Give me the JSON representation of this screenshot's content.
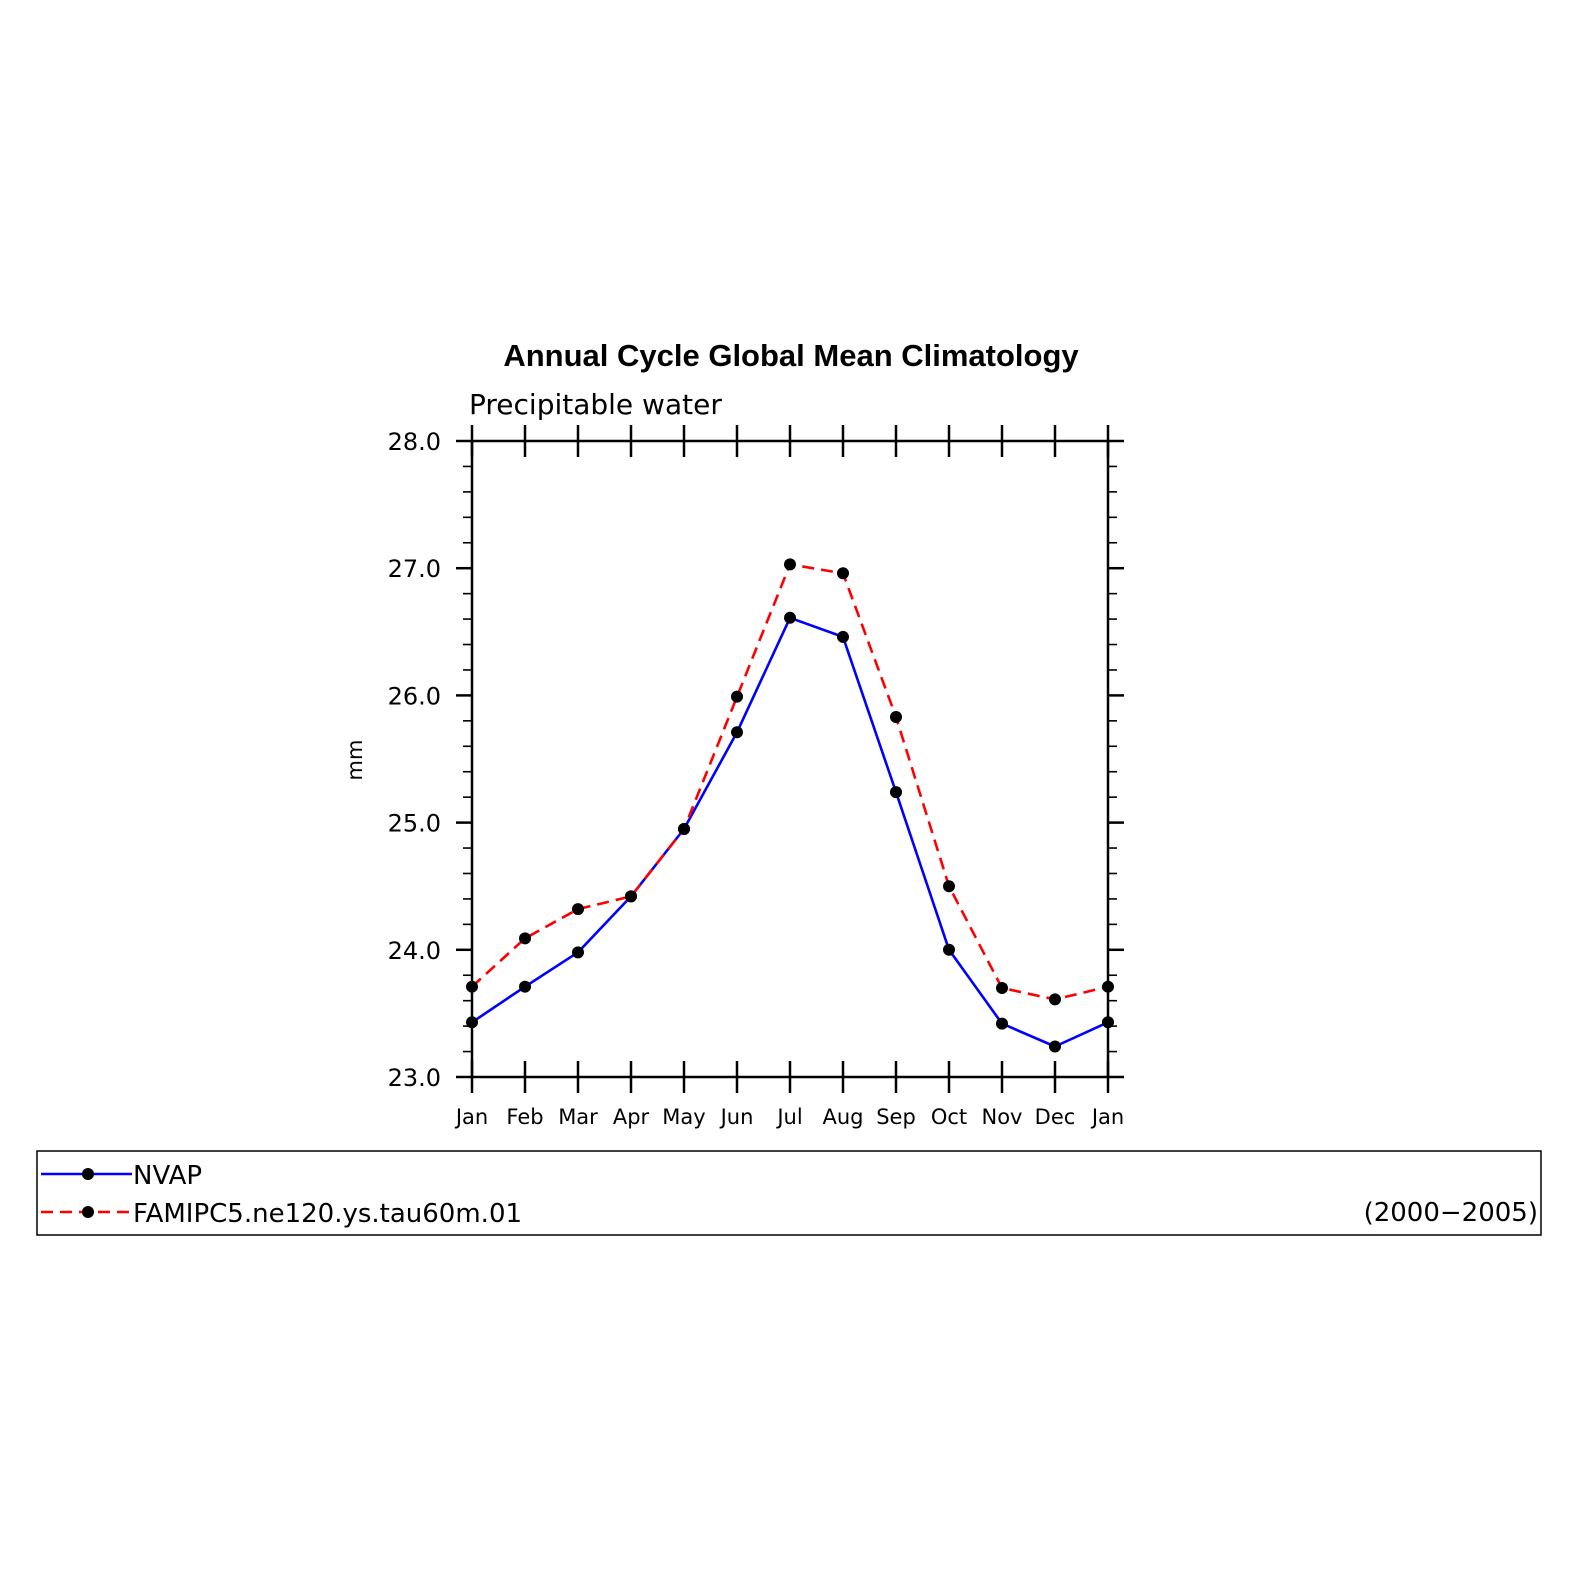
{
  "chart_data": {
    "type": "line",
    "title": "Annual Cycle Global Mean Climatology",
    "subtitle": "Precipitable water",
    "ylabel": "mm",
    "xlabel": "",
    "ylim": [
      23.0,
      28.0
    ],
    "yticks": [
      "23.0",
      "24.0",
      "25.0",
      "26.0",
      "27.0",
      "28.0"
    ],
    "categories": [
      "Jan",
      "Feb",
      "Mar",
      "Apr",
      "May",
      "Jun",
      "Jul",
      "Aug",
      "Sep",
      "Oct",
      "Nov",
      "Dec",
      "Jan"
    ],
    "grid": false,
    "series": [
      {
        "name": "NVAP",
        "color": "#0000ff",
        "dash": "solid",
        "values": [
          23.43,
          23.71,
          23.98,
          24.42,
          24.95,
          25.71,
          26.61,
          26.46,
          25.24,
          24.0,
          23.42,
          23.24,
          23.43
        ]
      },
      {
        "name": "FAMIPC5.ne120.ys.tau60m.01",
        "color": "#ff0000",
        "dash": "dashed",
        "values": [
          23.71,
          24.09,
          24.32,
          24.42,
          24.95,
          25.99,
          27.03,
          26.96,
          25.83,
          24.5,
          23.7,
          23.61,
          23.71
        ]
      }
    ],
    "legend": {
      "placement": "bottom",
      "period": "(2000−2005)"
    },
    "marker_color": "#000000"
  }
}
